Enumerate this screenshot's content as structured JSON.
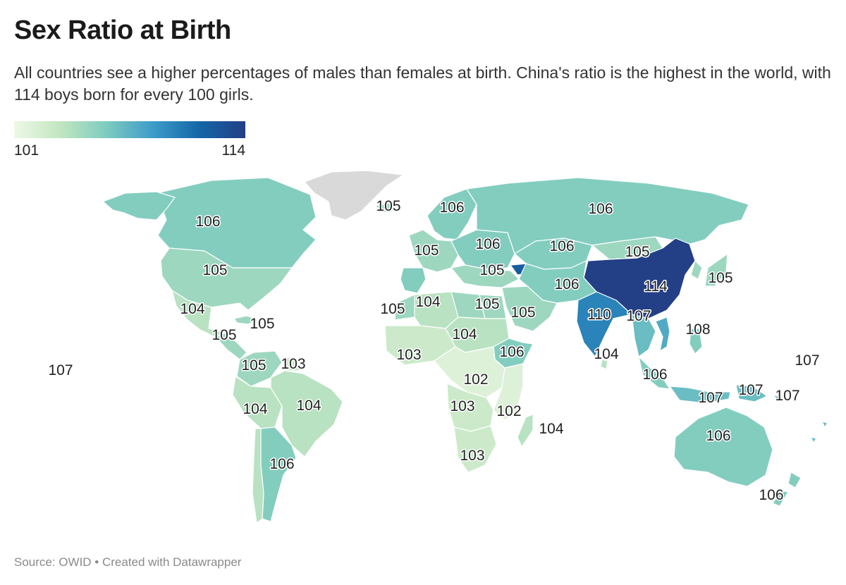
{
  "header": {
    "title": "Sex Ratio at Birth",
    "subtitle": "All countries see a higher percentages of males than females at birth. China's ratio is the highest in the world, with 114 boys born for every 100 girls."
  },
  "legend": {
    "min_label": "101",
    "max_label": "114",
    "min_value": 101,
    "max_value": 114,
    "color_stops": [
      "#eef8e6",
      "#c2e6c1",
      "#7ecbbf",
      "#3d9cc8",
      "#1466a8",
      "#233f86"
    ]
  },
  "no_data_color": "#d9d9d9",
  "regions": [
    {
      "name": "Greenland",
      "value": null
    },
    {
      "name": "Canada",
      "value": 106,
      "label": "106"
    },
    {
      "name": "Alaska",
      "value": 106
    },
    {
      "name": "United States",
      "value": 105,
      "label": "105"
    },
    {
      "name": "Mexico",
      "value": 104,
      "label": "104"
    },
    {
      "name": "Central America",
      "value": 105,
      "label": "105"
    },
    {
      "name": "Caribbean",
      "value": 105,
      "label": "105"
    },
    {
      "name": "Colombia / Venezuela",
      "value": 105,
      "label": "105"
    },
    {
      "name": "Guianas",
      "value": 103,
      "label": "103"
    },
    {
      "name": "Peru / Bolivia",
      "value": 104,
      "label": "104"
    },
    {
      "name": "Brazil",
      "value": 104,
      "label": "104"
    },
    {
      "name": "Argentina",
      "value": 106,
      "label": "106"
    },
    {
      "name": "Chile",
      "value": 104
    },
    {
      "name": "Iceland",
      "value": 105,
      "label": "105"
    },
    {
      "name": "Scandinavia",
      "value": 106,
      "label": "106"
    },
    {
      "name": "Western Europe",
      "value": 105,
      "label": "105"
    },
    {
      "name": "Eastern Europe",
      "value": 106,
      "label": "106"
    },
    {
      "name": "Iberia",
      "value": 106
    },
    {
      "name": "Balkans / Turkey",
      "value": 105,
      "label": "105"
    },
    {
      "name": "Caucasus",
      "value": 112
    },
    {
      "name": "Russia",
      "value": 106,
      "label": "106"
    },
    {
      "name": "Kazakhstan",
      "value": 106,
      "label": "106"
    },
    {
      "name": "Mongolia",
      "value": 105,
      "label": "105"
    },
    {
      "name": "China",
      "value": 114,
      "label": "114"
    },
    {
      "name": "Korea / Japan",
      "value": 105,
      "label": "105"
    },
    {
      "name": "Central Asia / Iran",
      "value": 106,
      "label": "106"
    },
    {
      "name": "Arabia",
      "value": 105,
      "label": "105"
    },
    {
      "name": "India",
      "value": 110,
      "label": "110"
    },
    {
      "name": "Myanmar / Thailand",
      "value": 107,
      "label": "107"
    },
    {
      "name": "Vietnam",
      "value": 108,
      "label": "108"
    },
    {
      "name": "Philippines",
      "value": 106
    },
    {
      "name": "Sri Lanka",
      "value": 104,
      "label": "104"
    },
    {
      "name": "Malaysia / Sumatra",
      "value": 106,
      "label": "106"
    },
    {
      "name": "Indonesia",
      "value": 107,
      "label": "107"
    },
    {
      "name": "Papua New Guinea",
      "value": 107,
      "label": "107"
    },
    {
      "name": "Solomon Islands",
      "value": 107,
      "label": "107"
    },
    {
      "name": "Fiji",
      "value": 107,
      "label": "107"
    },
    {
      "name": "Australia",
      "value": 106,
      "label": "106"
    },
    {
      "name": "New Zealand",
      "value": 106,
      "label": "106"
    },
    {
      "name": "Morocco",
      "value": 105,
      "label": "105"
    },
    {
      "name": "Algeria",
      "value": 104,
      "label": "104"
    },
    {
      "name": "Libya",
      "value": 105,
      "label": "105"
    },
    {
      "name": "Egypt",
      "value": 105
    },
    {
      "name": "West Africa",
      "value": 103,
      "label": "103"
    },
    {
      "name": "Sahel",
      "value": 104,
      "label": "104"
    },
    {
      "name": "Ethiopia",
      "value": 106,
      "label": "106"
    },
    {
      "name": "Central Africa",
      "value": 102,
      "label": "102"
    },
    {
      "name": "Angola / Zambia",
      "value": 103,
      "label": "103"
    },
    {
      "name": "East Africa",
      "value": 102,
      "label": "102"
    },
    {
      "name": "Southern Africa",
      "value": 103,
      "label": "103"
    },
    {
      "name": "Madagascar",
      "value": 104,
      "label": "104"
    },
    {
      "name": "Pacific",
      "value": 107,
      "label": "107"
    }
  ],
  "source": "Source: OWID • Created with Datawrapper"
}
